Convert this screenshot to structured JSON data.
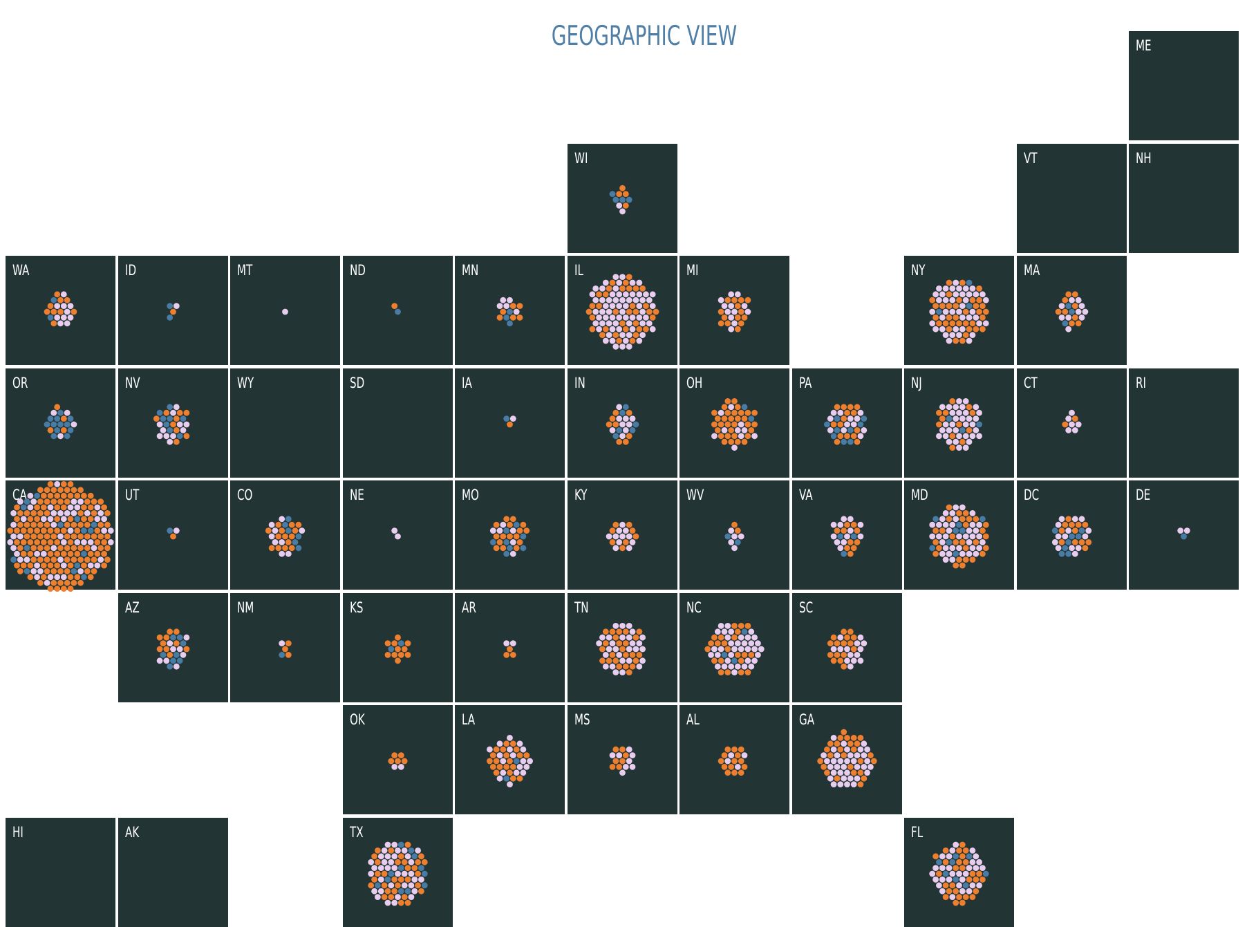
{
  "title": "GEOGRAPHIC VIEW",
  "colors": {
    "tile_background": "#223434",
    "title": "#4f7fa6",
    "label": "#ffffff",
    "categories": [
      "#e9cdef",
      "#ee7f2e",
      "#487ca5"
    ]
  },
  "states": [
    {
      "code": "ME",
      "counts": [
        0,
        0,
        0
      ]
    },
    {
      "code": "WI",
      "counts": [
        2,
        4,
        4
      ]
    },
    {
      "code": "VT",
      "counts": [
        0,
        0,
        0
      ]
    },
    {
      "code": "NH",
      "counts": [
        0,
        0,
        0
      ]
    },
    {
      "code": "WA",
      "counts": [
        10,
        9,
        2
      ]
    },
    {
      "code": "ID",
      "counts": [
        1,
        1,
        2
      ]
    },
    {
      "code": "MT",
      "counts": [
        1,
        0,
        0
      ]
    },
    {
      "code": "ND",
      "counts": [
        0,
        1,
        1
      ]
    },
    {
      "code": "MN",
      "counts": [
        5,
        6,
        3
      ]
    },
    {
      "code": "IL",
      "counts": [
        68,
        34,
        0
      ]
    },
    {
      "code": "MI",
      "counts": [
        12,
        14,
        0
      ]
    },
    {
      "code": "NY",
      "counts": [
        42,
        34,
        3
      ]
    },
    {
      "code": "MA",
      "counts": [
        10,
        9,
        3
      ]
    },
    {
      "code": "OR",
      "counts": [
        4,
        4,
        12
      ]
    },
    {
      "code": "NV",
      "counts": [
        11,
        9,
        8
      ]
    },
    {
      "code": "WY",
      "counts": [
        0,
        0,
        0
      ]
    },
    {
      "code": "SD",
      "counts": [
        0,
        0,
        0
      ]
    },
    {
      "code": "IA",
      "counts": [
        1,
        1,
        1
      ]
    },
    {
      "code": "IN",
      "counts": [
        9,
        8,
        6
      ]
    },
    {
      "code": "OH",
      "counts": [
        10,
        32,
        2
      ]
    },
    {
      "code": "PA",
      "counts": [
        12,
        15,
        9
      ]
    },
    {
      "code": "NJ",
      "counts": [
        34,
        12,
        3
      ]
    },
    {
      "code": "CT",
      "counts": [
        6,
        2,
        0
      ]
    },
    {
      "code": "RI",
      "counts": [
        0,
        0,
        0
      ]
    },
    {
      "code": "CA",
      "counts": [
        60,
        155,
        15
      ]
    },
    {
      "code": "UT",
      "counts": [
        1,
        1,
        1
      ]
    },
    {
      "code": "CO",
      "counts": [
        9,
        14,
        6
      ]
    },
    {
      "code": "NE",
      "counts": [
        2,
        0,
        0
      ]
    },
    {
      "code": "MO",
      "counts": [
        6,
        16,
        8
      ]
    },
    {
      "code": "KY",
      "counts": [
        11,
        8,
        0
      ]
    },
    {
      "code": "WV",
      "counts": [
        5,
        2,
        2
      ]
    },
    {
      "code": "VA",
      "counts": [
        12,
        10,
        3
      ]
    },
    {
      "code": "MD",
      "counts": [
        38,
        28,
        8
      ]
    },
    {
      "code": "DC",
      "counts": [
        14,
        12,
        8
      ]
    },
    {
      "code": "DE",
      "counts": [
        2,
        0,
        1
      ]
    },
    {
      "code": "AZ",
      "counts": [
        8,
        10,
        8
      ]
    },
    {
      "code": "NM",
      "counts": [
        1,
        3,
        1
      ]
    },
    {
      "code": "KS",
      "counts": [
        0,
        11,
        2
      ]
    },
    {
      "code": "AR",
      "counts": [
        2,
        3,
        0
      ]
    },
    {
      "code": "TN",
      "counts": [
        28,
        24,
        0
      ]
    },
    {
      "code": "NC",
      "counts": [
        36,
        22,
        3
      ]
    },
    {
      "code": "SC",
      "counts": [
        14,
        16,
        0
      ]
    },
    {
      "code": "OK",
      "counts": [
        2,
        5,
        0
      ]
    },
    {
      "code": "LA",
      "counts": [
        18,
        20,
        2
      ]
    },
    {
      "code": "MS",
      "counts": [
        8,
        7,
        0
      ]
    },
    {
      "code": "AL",
      "counts": [
        4,
        14,
        0
      ]
    },
    {
      "code": "GA",
      "counts": [
        36,
        26,
        0
      ]
    },
    {
      "code": "HI",
      "counts": [
        0,
        0,
        0
      ]
    },
    {
      "code": "AK",
      "counts": [
        0,
        0,
        0
      ]
    },
    {
      "code": "TX",
      "counts": [
        36,
        32,
        12
      ]
    },
    {
      "code": "FL",
      "counts": [
        30,
        28,
        8
      ]
    }
  ]
}
